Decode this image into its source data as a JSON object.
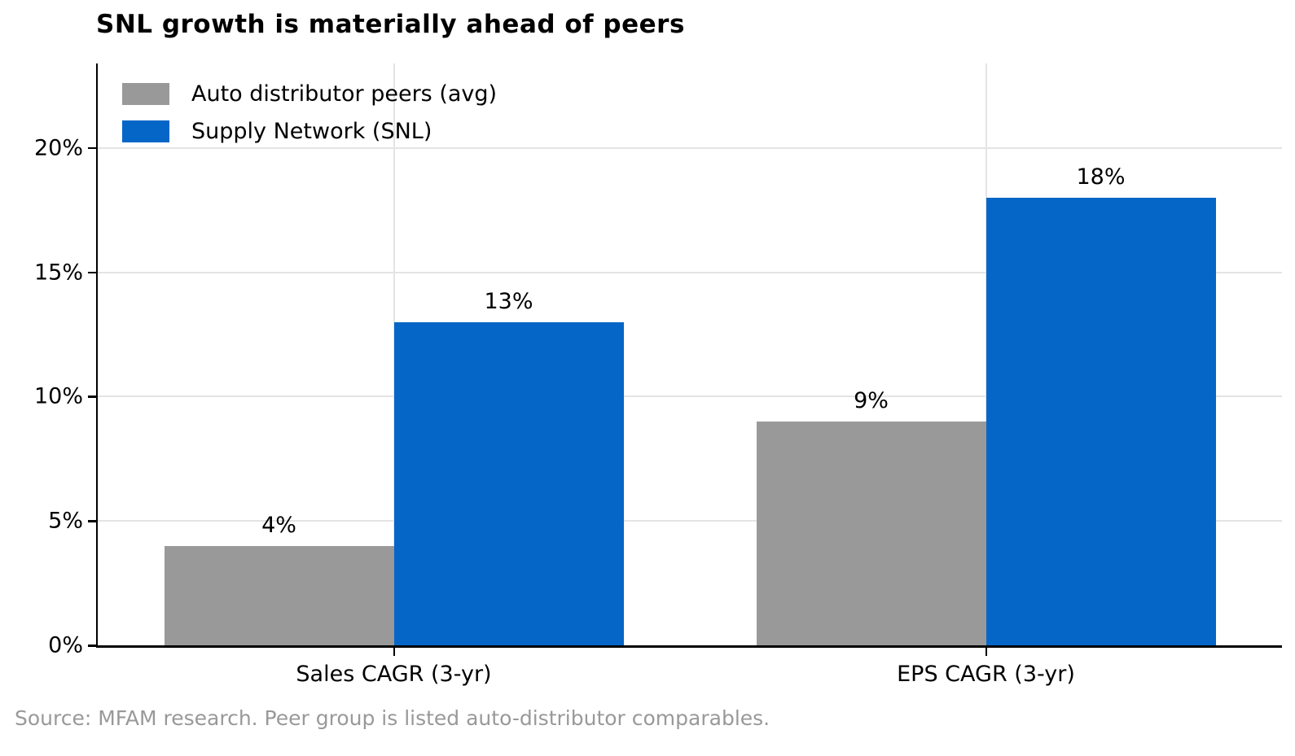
{
  "title": "SNL growth is materially ahead of peers",
  "source_note": "Source: MFAM research. Peer group is listed auto-distributor comparables.",
  "colors": {
    "peers_gray": "#999999",
    "snl_blue": "#0566c8",
    "grid": "#e4e4e4",
    "axis": "#000000",
    "source_text": "#999999"
  },
  "legend": {
    "items": [
      {
        "label": "Auto distributor peers (avg)",
        "color": "#999999"
      },
      {
        "label": "Supply Network (SNL)",
        "color": "#0566c8"
      }
    ]
  },
  "chart_data": {
    "type": "bar",
    "title": "SNL growth is materially ahead of peers",
    "categories": [
      "Sales CAGR (3-yr)",
      "EPS CAGR (3-yr)"
    ],
    "series": [
      {
        "name": "Auto distributor peers (avg)",
        "color": "#999999",
        "values": [
          4,
          9
        ],
        "value_labels": [
          "4%",
          "9%"
        ]
      },
      {
        "name": "Supply Network (SNL)",
        "color": "#0566c8",
        "values": [
          13,
          18
        ],
        "value_labels": [
          "13%",
          "18%"
        ]
      }
    ],
    "xlabel": "",
    "ylabel": "",
    "ylim": [
      0,
      23.4
    ],
    "yticks": [
      {
        "value": 0,
        "label": "0%"
      },
      {
        "value": 5,
        "label": "5%"
      },
      {
        "value": 10,
        "label": "10%"
      },
      {
        "value": 15,
        "label": "15%"
      },
      {
        "value": 20,
        "label": "20%"
      }
    ],
    "grid": "both",
    "legend_position": "upper left",
    "legend_frame": false
  }
}
